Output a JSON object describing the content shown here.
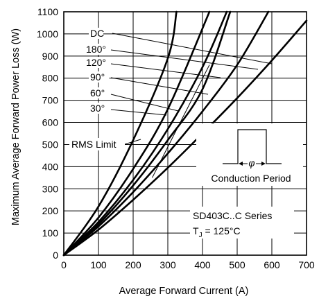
{
  "chart_data": {
    "type": "line",
    "xlabel": "Average Forward Current (A)",
    "ylabel": "Maximum Average Forward Power Loss (W)",
    "xlim": [
      0,
      700
    ],
    "ylim": [
      0,
      1100
    ],
    "x_ticks": [
      0,
      100,
      200,
      300,
      400,
      500,
      600,
      700
    ],
    "y_ticks": [
      0,
      100,
      200,
      300,
      400,
      500,
      600,
      700,
      800,
      900,
      1000,
      1100
    ],
    "grid": true,
    "series": [
      {
        "name": "DC",
        "x": [
          0,
          100,
          200,
          300,
          400,
          500,
          600,
          700
        ],
        "y": [
          0,
          115,
          250,
          395,
          550,
          710,
          880,
          1060
        ]
      },
      {
        "name": "180°",
        "x": [
          0,
          100,
          200,
          300,
          400,
          500,
          590
        ],
        "y": [
          0,
          130,
          285,
          460,
          650,
          860,
          1100
        ]
      },
      {
        "name": "120°",
        "x": [
          0,
          100,
          200,
          300,
          400,
          480
        ],
        "y": [
          0,
          140,
          315,
          520,
          750,
          1100
        ]
      },
      {
        "name": "90°",
        "x": [
          0,
          100,
          200,
          300,
          400,
          470
        ],
        "y": [
          0,
          150,
          340,
          570,
          850,
          1100
        ]
      },
      {
        "name": "60°",
        "x": [
          0,
          100,
          200,
          300,
          420
        ],
        "y": [
          0,
          170,
          390,
          660,
          1100
        ]
      },
      {
        "name": "30°",
        "x": [
          0,
          100,
          200,
          300,
          325
        ],
        "y": [
          0,
          220,
          520,
          890,
          1100
        ]
      }
    ],
    "rms_limit": {
      "label": "RMS Limit",
      "x": [
        255,
        420
      ],
      "y": [
        350,
        860
      ]
    },
    "curve_labels": [
      "DC",
      "180°",
      "120°",
      "90°",
      "60°",
      "30°"
    ],
    "inset_label": "Conduction Period",
    "series_label": "SD403C..C Series",
    "tj_label_main": "T",
    "tj_label_sub": "J",
    "tj_label_value": " = 125°C"
  }
}
